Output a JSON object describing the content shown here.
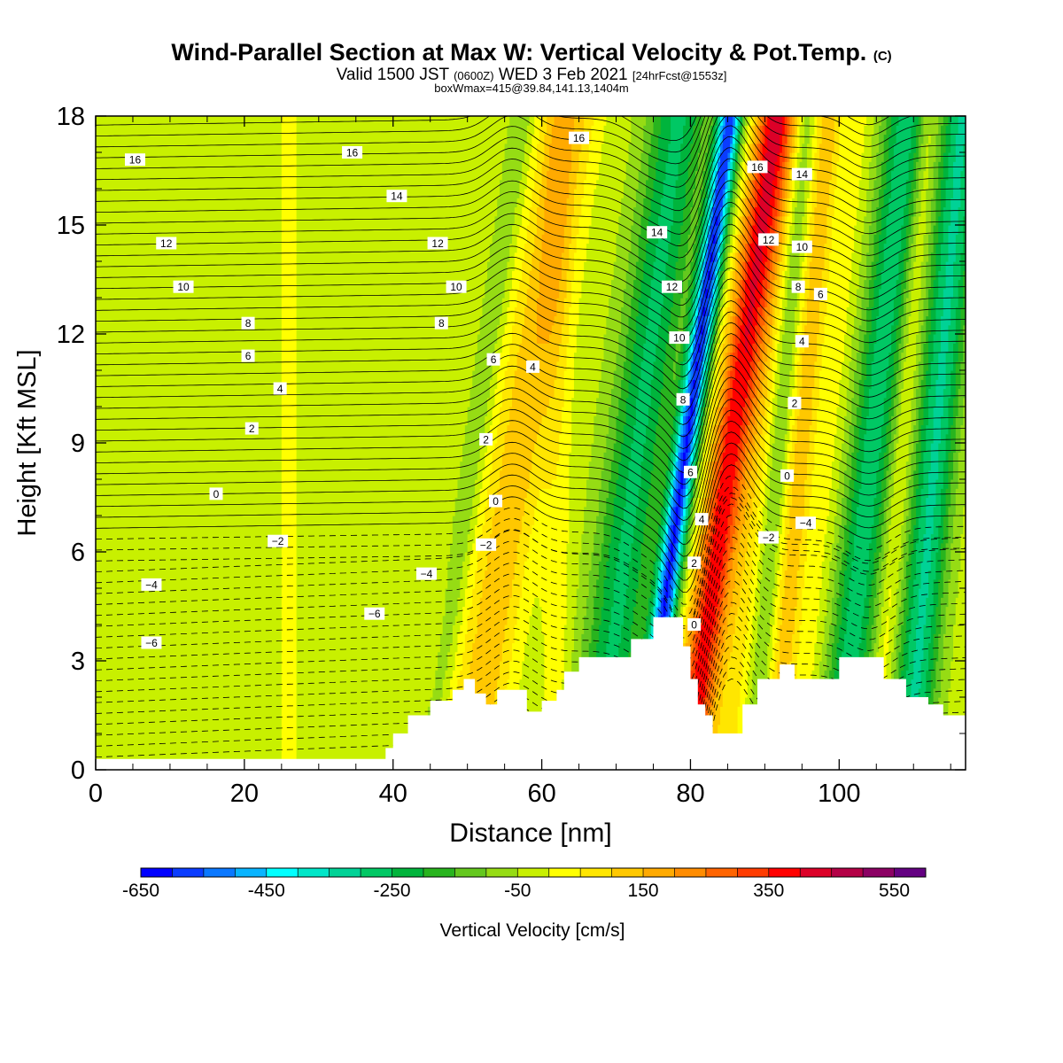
{
  "header": {
    "title": "Wind-Parallel Section at Max W: Vertical Velocity & Pot.Temp.",
    "title_mark": "(C)",
    "valid_prefix": "Valid 1500 JST",
    "valid_utc": "(0600Z)",
    "valid_date": "WED 3 Feb 2021",
    "forecast": "[24hrFcst@1553z]",
    "box_info": "boxWmax=415@39.84,141.13,1404m"
  },
  "chart_data": {
    "type": "heatmap",
    "title": "Wind-Parallel Section at Max W: Vertical Velocity & Pot.Temp.",
    "xlabel": "Distance [nm]",
    "ylabel": "Height [Kft MSL]",
    "xlim": [
      0,
      117
    ],
    "ylim": [
      0,
      18
    ],
    "x_ticks": [
      0,
      20,
      40,
      60,
      80,
      100
    ],
    "y_ticks": [
      0,
      3,
      6,
      9,
      12,
      15,
      18
    ],
    "grid": false,
    "colorbar": {
      "label": "Vertical Velocity [cm/s]",
      "min": -650,
      "max": 650,
      "step": 50,
      "tick_labels": [
        -650,
        -450,
        -250,
        -50,
        150,
        350,
        550
      ],
      "colors": [
        "#0000ff",
        "#0a3cff",
        "#0a78ff",
        "#08b4ff",
        "#00ffff",
        "#00e6c8",
        "#00d296",
        "#00c864",
        "#00b43c",
        "#28b41e",
        "#64c81e",
        "#96dc14",
        "#c8f000",
        "#ffff00",
        "#ffe600",
        "#ffc800",
        "#ffaa00",
        "#ff8c00",
        "#ff6400",
        "#ff3c00",
        "#ff0000",
        "#dc0028",
        "#b40046",
        "#8c0064",
        "#640082"
      ]
    },
    "vertical_velocity_field": {
      "units": "cm/s",
      "background": -30,
      "features": [
        {
          "x": 11,
          "w": 2.0,
          "value": 25
        },
        {
          "x": 17,
          "w": 1.6,
          "value": 20
        },
        {
          "x": 26,
          "w": 2.2,
          "value": 35
        },
        {
          "x": 36,
          "w": 2.0,
          "value": 30
        },
        {
          "x": 46,
          "w": 1.8,
          "value": 25
        },
        {
          "x": 51,
          "w": 1.5,
          "value": -70,
          "tilt": 1.4
        },
        {
          "x": 57,
          "w": 3.8,
          "value": 170,
          "tilt": 1.5
        },
        {
          "x": 62,
          "w": 2.0,
          "value": 60
        },
        {
          "x": 73,
          "w": 4.0,
          "value": -230,
          "tilt": 1.2
        },
        {
          "x": 79.5,
          "w": 1.6,
          "value": -560,
          "tilt": 1.3
        },
        {
          "x": 85.5,
          "w": 2.6,
          "value": 415,
          "tilt": 1.3
        },
        {
          "x": 89,
          "w": 2.2,
          "value": 90,
          "tilt": 0.9
        },
        {
          "x": 92,
          "w": 1.4,
          "value": -90,
          "tilt": 0.8
        },
        {
          "x": 95,
          "w": 2.0,
          "value": 160,
          "tilt": 0.8
        },
        {
          "x": 99,
          "w": 1.6,
          "value": 45,
          "tilt": 0.9
        },
        {
          "x": 104.5,
          "w": 3.0,
          "value": -250,
          "tilt": 1.0
        },
        {
          "x": 108.5,
          "w": 1.3,
          "value": 80,
          "tilt": 0.8
        },
        {
          "x": 113,
          "w": 2.8,
          "value": -280,
          "tilt": 0.8
        }
      ]
    },
    "terrain": [
      [
        0,
        0.3
      ],
      [
        38,
        0.3
      ],
      [
        39,
        0.6
      ],
      [
        40,
        1.0
      ],
      [
        42,
        1.5
      ],
      [
        45,
        1.9
      ],
      [
        48,
        2.2
      ],
      [
        49.5,
        2.5
      ],
      [
        51,
        2.1
      ],
      [
        52.5,
        1.8
      ],
      [
        54,
        2.2
      ],
      [
        56,
        2.2
      ],
      [
        58,
        1.6
      ],
      [
        60,
        1.9
      ],
      [
        62,
        2.2
      ],
      [
        63,
        2.7
      ],
      [
        65,
        3.1
      ],
      [
        70,
        3.1
      ],
      [
        72,
        3.6
      ],
      [
        75,
        4.2
      ],
      [
        78,
        4.2
      ],
      [
        79,
        3.4
      ],
      [
        80,
        2.5
      ],
      [
        81,
        1.8
      ],
      [
        82,
        1.5
      ],
      [
        83,
        1.0
      ],
      [
        86,
        1.0
      ],
      [
        87,
        1.8
      ],
      [
        89,
        2.5
      ],
      [
        92,
        2.9
      ],
      [
        94,
        2.5
      ],
      [
        98,
        2.5
      ],
      [
        100,
        3.1
      ],
      [
        103,
        3.1
      ],
      [
        106,
        2.5
      ],
      [
        109,
        2.0
      ],
      [
        112,
        1.8
      ],
      [
        114,
        1.5
      ],
      [
        117,
        1.5
      ]
    ],
    "potential_temperature": {
      "units": "C",
      "contour_interval": 0.5,
      "labels": [
        {
          "text": "16",
          "x": 5.3,
          "y": 16.8
        },
        {
          "text": "16",
          "x": 34.5,
          "y": 17.0
        },
        {
          "text": "16",
          "x": 65.0,
          "y": 17.4
        },
        {
          "text": "16",
          "x": 89.0,
          "y": 16.6
        },
        {
          "text": "14",
          "x": 40.5,
          "y": 15.8
        },
        {
          "text": "14",
          "x": 95.0,
          "y": 16.4
        },
        {
          "text": "14",
          "x": 75.5,
          "y": 14.8
        },
        {
          "text": "12",
          "x": 9.5,
          "y": 14.5
        },
        {
          "text": "12",
          "x": 46.0,
          "y": 14.5
        },
        {
          "text": "12",
          "x": 90.5,
          "y": 14.6
        },
        {
          "text": "12",
          "x": 77.5,
          "y": 13.3
        },
        {
          "text": "10",
          "x": 11.8,
          "y": 13.3
        },
        {
          "text": "10",
          "x": 48.5,
          "y": 13.3
        },
        {
          "text": "10",
          "x": 95.0,
          "y": 14.4
        },
        {
          "text": "10",
          "x": 78.5,
          "y": 11.9
        },
        {
          "text": "8",
          "x": 20.5,
          "y": 12.3
        },
        {
          "text": "8",
          "x": 46.5,
          "y": 12.3
        },
        {
          "text": "8",
          "x": 94.5,
          "y": 13.3
        },
        {
          "text": "8",
          "x": 79.0,
          "y": 10.2
        },
        {
          "text": "6",
          "x": 20.5,
          "y": 11.4
        },
        {
          "text": "6",
          "x": 53.5,
          "y": 11.3
        },
        {
          "text": "6",
          "x": 97.5,
          "y": 13.1
        },
        {
          "text": "6",
          "x": 80.0,
          "y": 8.2
        },
        {
          "text": "4",
          "x": 24.8,
          "y": 10.5
        },
        {
          "text": "4",
          "x": 58.8,
          "y": 11.1
        },
        {
          "text": "4",
          "x": 95.0,
          "y": 11.8
        },
        {
          "text": "4",
          "x": 81.5,
          "y": 6.9
        },
        {
          "text": "2",
          "x": 21.0,
          "y": 9.4
        },
        {
          "text": "2",
          "x": 52.5,
          "y": 9.1
        },
        {
          "text": "2",
          "x": 94.0,
          "y": 10.1
        },
        {
          "text": "2",
          "x": 80.5,
          "y": 5.7
        },
        {
          "text": "0",
          "x": 16.2,
          "y": 7.6
        },
        {
          "text": "0",
          "x": 53.8,
          "y": 7.4
        },
        {
          "text": "0",
          "x": 93.0,
          "y": 8.1
        },
        {
          "text": "0",
          "x": 80.5,
          "y": 4.0
        },
        {
          "text": "−2",
          "x": 24.5,
          "y": 6.3
        },
        {
          "text": "−2",
          "x": 52.5,
          "y": 6.2
        },
        {
          "text": "−2",
          "x": 90.5,
          "y": 6.4
        },
        {
          "text": "−4",
          "x": 7.5,
          "y": 5.1
        },
        {
          "text": "−4",
          "x": 44.5,
          "y": 5.4
        },
        {
          "text": "−4",
          "x": 95.5,
          "y": 6.8
        },
        {
          "text": "−6",
          "x": 7.5,
          "y": 3.5
        },
        {
          "text": "−6",
          "x": 37.5,
          "y": 4.3
        }
      ]
    }
  }
}
